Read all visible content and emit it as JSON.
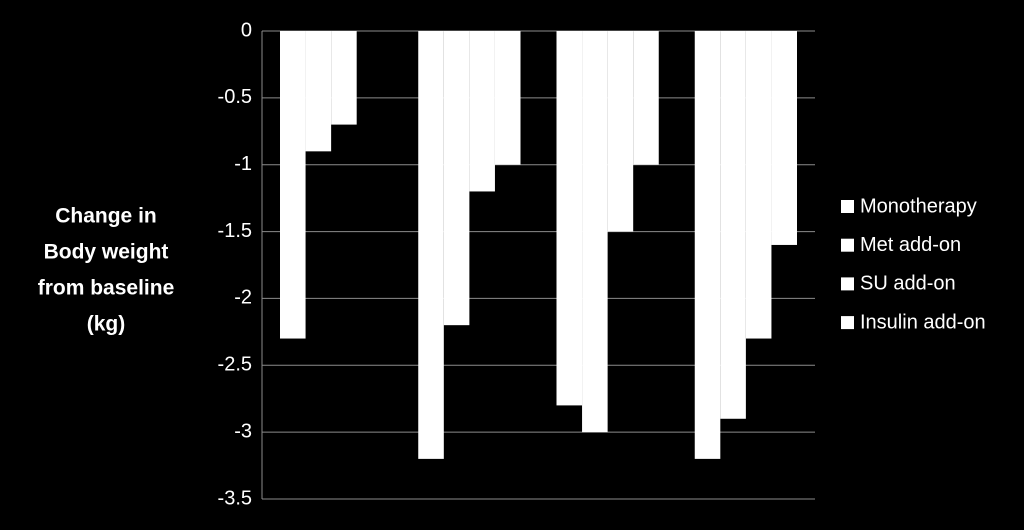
{
  "chart_data": {
    "type": "bar",
    "ylabel": [
      "Change in",
      "Body weight",
      "from baseline",
      "(kg)"
    ],
    "categories": [
      null,
      null,
      null,
      null
    ],
    "series": [
      {
        "name": "Monotherapy",
        "color": "#ffffff",
        "values": [
          -2.3,
          -3.2,
          -2.8,
          -3.2
        ]
      },
      {
        "name": "Met add-on",
        "color": "#ffffff",
        "values": [
          -0.9,
          -2.2,
          -3.0,
          -2.9
        ]
      },
      {
        "name": "SU add-on",
        "color": "#ffffff",
        "values": [
          -0.7,
          -1.2,
          -1.5,
          -2.3
        ]
      },
      {
        "name": "Insulin add-on",
        "color": "#ffffff",
        "values": [
          null,
          -1.0,
          -1.0,
          -1.6
        ]
      }
    ],
    "ylim": [
      -3.5,
      0
    ],
    "yticks": [
      0,
      -0.5,
      -1,
      -1.5,
      -2,
      -2.5,
      -3,
      -3.5
    ],
    "grid": true,
    "legend": "right"
  }
}
